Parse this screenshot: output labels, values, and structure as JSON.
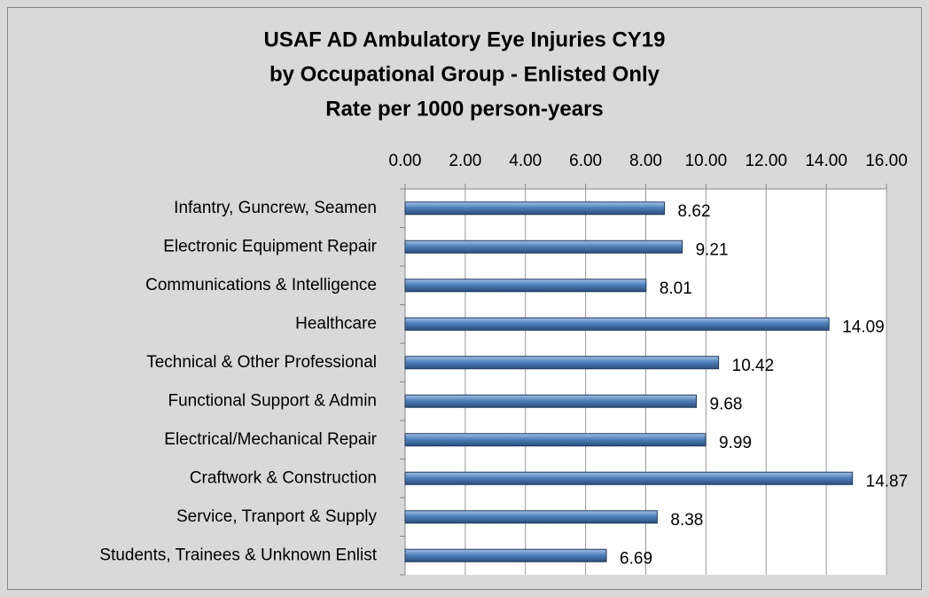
{
  "chart_data": {
    "type": "hbar",
    "title": [
      "USAF AD Ambulatory Eye Injuries CY19",
      "by Occupational Group - Enlisted Only",
      "Rate per 1000 person-years"
    ],
    "categories": [
      "Infantry, Guncrew, Seamen",
      "Electronic Equipment Repair",
      "Communications & Intelligence",
      "Healthcare",
      "Technical & Other Professional",
      "Functional Support & Admin",
      "Electrical/Mechanical Repair",
      "Craftwork & Construction",
      "Service, Tranport & Supply",
      "Students, Trainees & Unknown Enlist"
    ],
    "values": [
      8.62,
      9.21,
      8.01,
      14.09,
      10.42,
      9.68,
      9.99,
      14.87,
      8.38,
      6.69
    ],
    "color": "#4f81bd",
    "xlim": [
      0,
      16
    ],
    "xticks": [
      {
        "value": 0,
        "label": "0.00"
      },
      {
        "value": 2,
        "label": "2.00"
      },
      {
        "value": 4,
        "label": "4.00"
      },
      {
        "value": 6,
        "label": "6.00"
      },
      {
        "value": 8,
        "label": "8.00"
      },
      {
        "value": 10,
        "label": "10.00"
      },
      {
        "value": 12,
        "label": "12.00"
      },
      {
        "value": 14,
        "label": "14.00"
      },
      {
        "value": 16,
        "label": "16.00"
      }
    ],
    "grid": true
  }
}
